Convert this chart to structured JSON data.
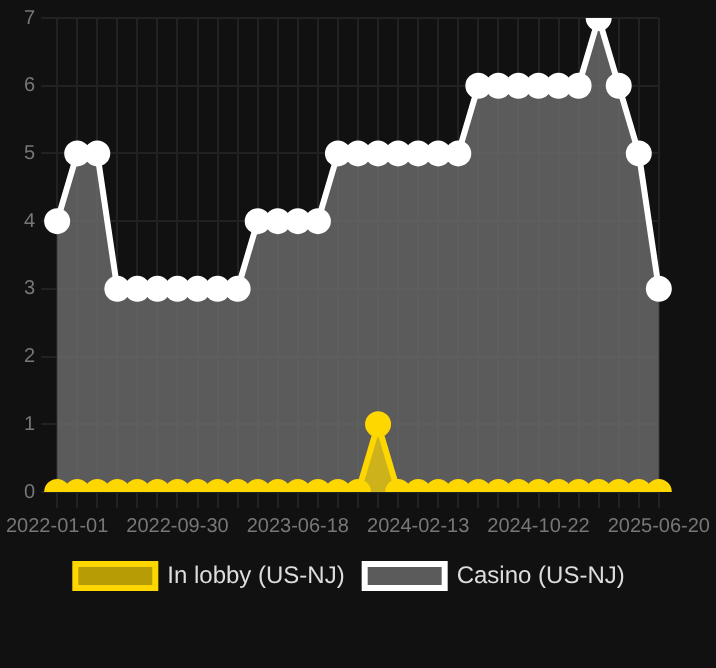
{
  "chart_data": {
    "type": "area",
    "categories": [
      "2022-01-01",
      null,
      null,
      null,
      null,
      null,
      "2022-09-30",
      null,
      null,
      null,
      null,
      null,
      "2023-06-18",
      null,
      null,
      null,
      null,
      null,
      "2024-02-13",
      null,
      null,
      null,
      null,
      null,
      "2024-10-22",
      null,
      null,
      null,
      null,
      null,
      "2025-06-20"
    ],
    "series": [
      {
        "name": "In lobby (US-NJ)",
        "color": "#ffd700",
        "values": [
          0,
          0,
          0,
          0,
          0,
          0,
          0,
          0,
          0,
          0,
          0,
          0,
          0,
          0,
          0,
          0,
          1,
          0,
          0,
          0,
          0,
          0,
          0,
          0,
          0,
          0,
          0,
          0,
          0,
          0,
          0
        ]
      },
      {
        "name": "Casino (US-NJ)",
        "color": "#ffffff",
        "values": [
          4,
          5,
          5,
          3,
          3,
          3,
          3,
          3,
          3,
          3,
          4,
          4,
          4,
          4,
          5,
          5,
          5,
          5,
          5,
          5,
          5,
          6,
          6,
          6,
          6,
          6,
          6,
          7,
          6,
          5,
          3
        ]
      }
    ],
    "ylim": [
      0,
      7
    ],
    "yticks": [
      0,
      1,
      2,
      3,
      4,
      5,
      6,
      7
    ],
    "grid": true,
    "legend": "bottom",
    "marker": "circle",
    "line_style": "solid"
  }
}
